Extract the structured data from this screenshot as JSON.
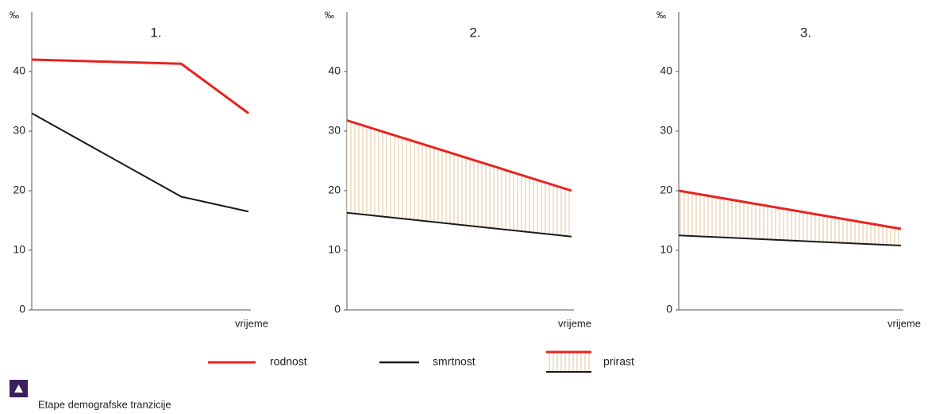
{
  "chart_data": [
    {
      "type": "line",
      "title": "1.",
      "ylabel": "‰",
      "xlabel": "vrijeme",
      "x": [
        0,
        0.69,
        1
      ],
      "xlim": [
        0,
        1
      ],
      "ylim": [
        0,
        50
      ],
      "yticks": [
        0,
        10,
        20,
        30,
        40
      ],
      "fill_between": false,
      "series": [
        {
          "color": "#e8231f",
          "values": [
            42,
            41.3,
            33
          ]
        },
        {
          "color": "#1a1a1a",
          "values": [
            33,
            19,
            16.5
          ]
        }
      ]
    },
    {
      "type": "line",
      "title": "2.",
      "ylabel": "‰",
      "xlabel": "vrijeme",
      "x": [
        0,
        1
      ],
      "xlim": [
        0,
        1
      ],
      "ylim": [
        0,
        50
      ],
      "yticks": [
        0,
        10,
        20,
        30,
        40
      ],
      "fill_between": true,
      "series": [
        {
          "color": "#e8231f",
          "values": [
            31.8,
            20
          ]
        },
        {
          "color": "#1a1a1a",
          "values": [
            16.3,
            12.3
          ]
        }
      ]
    },
    {
      "type": "line",
      "title": "3.",
      "ylabel": "‰",
      "xlabel": "vrijeme",
      "x": [
        0,
        1
      ],
      "xlim": [
        0,
        1
      ],
      "ylim": [
        0,
        50
      ],
      "yticks": [
        0,
        10,
        20,
        30,
        40
      ],
      "fill_between": true,
      "series": [
        {
          "color": "#e8231f",
          "values": [
            20,
            13.6
          ]
        },
        {
          "color": "#1a1a1a",
          "values": [
            12.5,
            10.8
          ]
        }
      ]
    }
  ],
  "legend": [
    "rodnost",
    "smrtnost",
    "prirast"
  ],
  "caption": "Etape demografske tranzicije"
}
